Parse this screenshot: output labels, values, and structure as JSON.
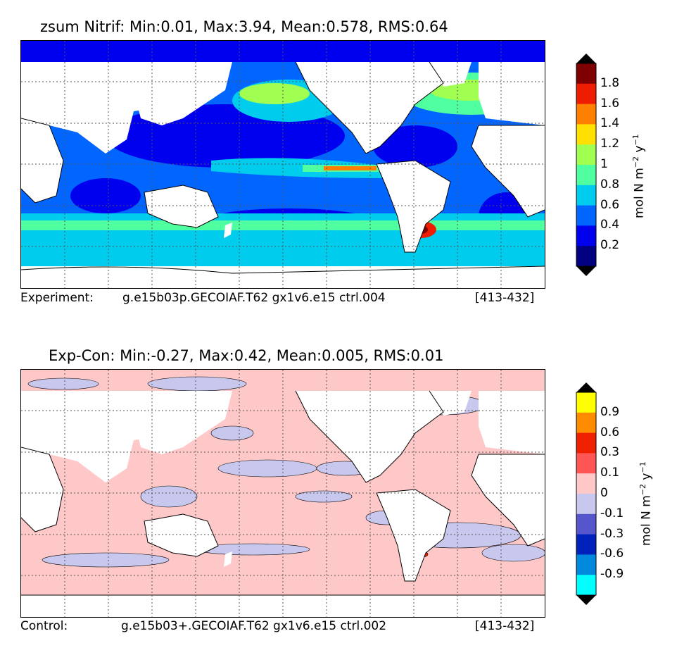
{
  "panels": [
    {
      "title": "zsum Nitrif: Min:0.01, Max:3.94, Mean:0.578, RMS:0.64",
      "footer_left": "Experiment:",
      "footer_mid": "g.e15b03p.GECOIAF.T62 gx1v6.e15 ctrl.004",
      "footer_right": "[413-432]",
      "colorbar": {
        "label": "mol N m⁻² y⁻¹",
        "ticks": [
          "1.8",
          "1.6",
          "1.4",
          "1.2",
          "1",
          "0.8",
          "0.6",
          "0.4",
          "0.2"
        ],
        "colors": [
          "#7f0000",
          "#ee1c00",
          "#ff7f00",
          "#ffe000",
          "#a0ff50",
          "#50ffa0",
          "#00ccee",
          "#0066ff",
          "#0000ee",
          "#000080"
        ],
        "over_color": "#000000",
        "under_color": "#000000"
      }
    },
    {
      "title": "Exp-Con: Min:-0.27, Max:0.42, Mean:0.005, RMS:0.01",
      "footer_left": "Control:",
      "footer_mid": "g.e15b03+.GECOIAF.T62 gx1v6.e15 ctrl.002",
      "footer_right": "[413-432]",
      "colorbar": {
        "label": "mol N m⁻² y⁻¹",
        "ticks": [
          "0.9",
          "0.6",
          "0.3",
          "0.1",
          "0",
          "-0.1",
          "-0.3",
          "-0.6",
          "-0.9"
        ],
        "colors": [
          "#ffff00",
          "#ff8c00",
          "#ee2000",
          "#ff5555",
          "#ffc8c8",
          "#c8c8ee",
          "#5555cc",
          "#0022bb",
          "#0088dd",
          "#00ffff"
        ],
        "over_color": "#000000",
        "under_color": "#000000"
      }
    }
  ]
}
